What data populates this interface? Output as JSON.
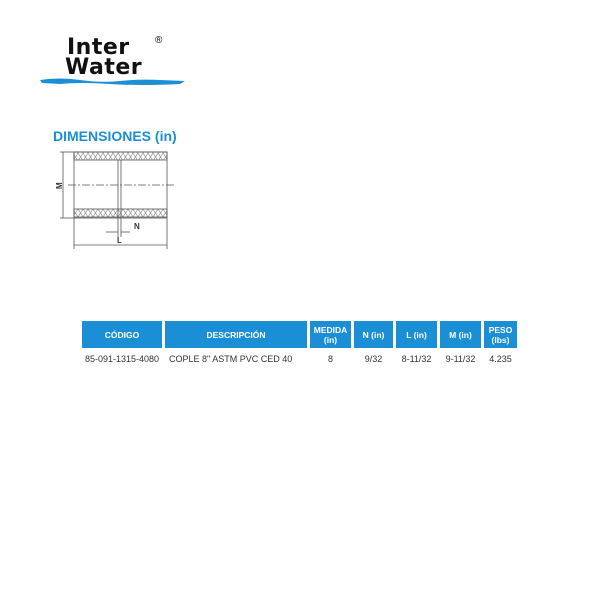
{
  "logo": {
    "line1": "Inter",
    "line2": "Water",
    "registered": "®",
    "colors": {
      "text": "#111111",
      "wave": "#1b8fd5"
    }
  },
  "section_title": "DIMENSIONES (in)",
  "diagram_labels": {
    "m": "M",
    "n": "N",
    "l": "L"
  },
  "table": {
    "headers": [
      "CÓDIGO",
      "DESCRIPCIÓN",
      "MEDIDA (in)",
      "N (in)",
      "L (in)",
      "M (in)",
      "PESO (lbs)"
    ],
    "header_color": "#1b8fd5",
    "rows": [
      [
        "85-091-1315-4080",
        "COPLE 8\" ASTM PVC CED 40",
        "8",
        "9/32",
        "8-11/32",
        "9-11/32",
        "4.235"
      ]
    ]
  }
}
